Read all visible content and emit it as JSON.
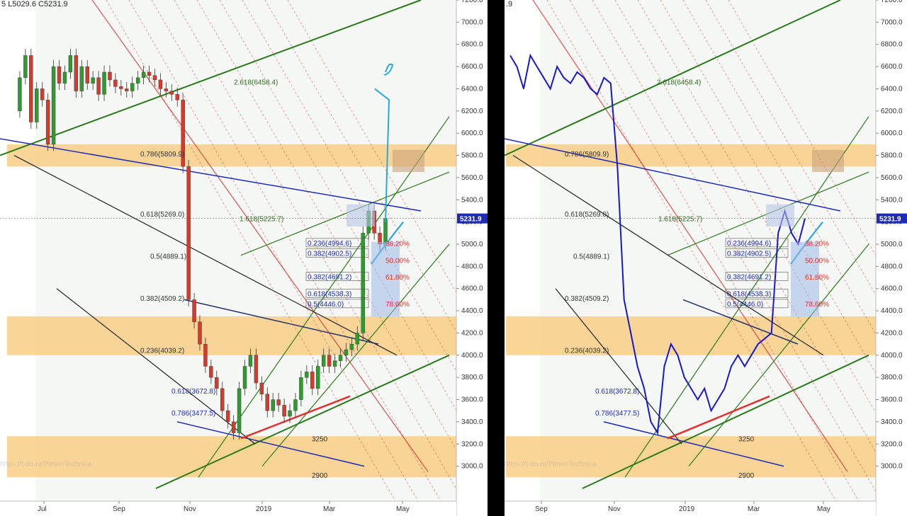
{
  "ohlc_header": {
    "low": "L5029.6",
    "close": "C5231.9",
    "partial": "5",
    "right_partial": ".9"
  },
  "colors": {
    "zone": "#f8c977",
    "zone_edge": "#f5b04d",
    "fib_red": "#e03030",
    "green_line": "#2a7a1a",
    "blue_line": "#1f2bb5",
    "forecast": "#29a8e0",
    "label_blue": "#1f2bb5",
    "label_green": "#2f6b1f",
    "label_red": "#e03030",
    "bg_shade": "#eef4ec",
    "price_tag_bg": "#1f2bb5"
  },
  "watermark": "https://t-do.ru/PimenTechnica",
  "chart_data": [
    {
      "type": "line",
      "name": "left",
      "style": "candles",
      "y_ticks": [
        3000,
        3200,
        3400,
        3600,
        3800,
        4000,
        4200,
        4400,
        4600,
        4800,
        5000,
        5200,
        5400,
        5600,
        5800,
        6000,
        6200,
        6400,
        6600,
        6800,
        7000,
        7200
      ],
      "y_tick_labels": [
        "3000.0",
        "3200.0",
        "3400.0",
        "3600.0",
        "3800.0",
        "4000.0",
        "4200.0",
        "4400.0",
        "4600.0",
        "4800.0",
        "5000.0",
        "5200.0",
        "5400.0",
        "5600.0",
        "5800.0",
        "6000.0",
        "6200.0",
        "6400.0",
        "6600.0",
        "6800.0",
        "7000.0",
        "7200.0"
      ],
      "ylim": [
        2800,
        7200
      ],
      "x_labels": [
        "Jul",
        "Sep",
        "Nov",
        "2019",
        "Mar",
        "May"
      ],
      "last_price": "5231.9",
      "fib_labels": [
        {
          "text": "2.618(6458.4)",
          "y": 6458.4
        },
        {
          "text": "0.786(5809.9)",
          "y": 5809.9
        },
        {
          "text": "0.618(5269.0)",
          "y": 5269.0
        },
        {
          "text": "1.618(5225.7)",
          "y": 5225.7
        },
        {
          "text": "0.5(4889.1)",
          "y": 4889.1
        },
        {
          "text": "0.382(4509.2)",
          "y": 4509.2
        },
        {
          "text": "0.236(4039.2)",
          "y": 4039.2
        },
        {
          "text": "0.618(3672.8)",
          "y": 3672.8
        },
        {
          "text": "0.786(3477.5)",
          "y": 3477.5
        }
      ],
      "inner_labels": [
        {
          "text": "0.236(4994.6)",
          "y": 4994.6
        },
        {
          "text": "0.382(4902.5)",
          "y": 4902.5
        },
        {
          "text": "0.382(4691.2)",
          "y": 4691.2
        },
        {
          "text": "0.618(4538.3)",
          "y": 4538.3
        },
        {
          "text": "0.5(4446.0)",
          "y": 4446.0
        }
      ],
      "pct_labels": [
        "38.20%",
        "50.00%",
        "61.80%",
        "78.60%"
      ],
      "level_labels": [
        "3250",
        "2900"
      ],
      "series_close": [
        6200,
        6500,
        6700,
        6100,
        6400,
        6300,
        5900,
        6600,
        6450,
        6550,
        6700,
        6380,
        6600,
        6450,
        6500,
        6350,
        6550,
        6480,
        6420,
        6400,
        6380,
        6450,
        6500,
        6550,
        6520,
        6480,
        6400,
        6380,
        6350,
        6300,
        5700,
        4500,
        4300,
        4100,
        3900,
        3800,
        3700,
        3500,
        3400,
        3300,
        3700,
        3900,
        4000,
        3750,
        3650,
        3500,
        3600,
        3550,
        3450,
        3500,
        3600,
        3800,
        3850,
        3700,
        3900,
        4000,
        3900,
        3950,
        4000,
        4050,
        4100,
        4200,
        5100,
        5300,
        5100,
        5000,
        5231.9
      ]
    },
    {
      "type": "line",
      "name": "right",
      "style": "line",
      "y_ticks": [
        3000,
        3200,
        3400,
        3600,
        3800,
        4000,
        4200,
        4400,
        4600,
        4800,
        5000,
        5200,
        5400,
        5600,
        5800,
        6000,
        6200,
        6400,
        6600,
        6800,
        7000,
        7200
      ],
      "y_tick_labels": [
        "3000.0",
        "3200.0",
        "3400.0",
        "3600.0",
        "3800.0",
        "4000.0",
        "4200.0",
        "4400.0",
        "4600.0",
        "4800.0",
        "5000.0",
        "5200.0",
        "5400.0",
        "5600.0",
        "5800.0",
        "6000.0",
        "6200.0",
        "6400.0",
        "6600.0",
        "6800.0",
        "7000.0",
        "7200.0"
      ],
      "ylim": [
        2800,
        7200
      ],
      "x_labels": [
        "Sep",
        "Nov",
        "2019",
        "Mar",
        "May"
      ],
      "last_price": "5231.9",
      "fib_labels": [
        {
          "text": "2.618(6458.4)",
          "y": 6458.4
        },
        {
          "text": "0.786(5809.9)",
          "y": 5809.9
        },
        {
          "text": "0.618(5269.0)",
          "y": 5269.0
        },
        {
          "text": "1.618(5225.7)",
          "y": 5225.7
        },
        {
          "text": "0.5(4889.1)",
          "y": 4889.1
        },
        {
          "text": "0.382(4509.2)",
          "y": 4509.2
        },
        {
          "text": "0.236(4039.2)",
          "y": 4039.2
        },
        {
          "text": "0.618(3672.8)",
          "y": 3672.8
        },
        {
          "text": "0.786(3477.5)",
          "y": 3477.5
        }
      ],
      "inner_labels": [
        {
          "text": "0.236(4994.6)",
          "y": 4994.6
        },
        {
          "text": "0.382(4902.5)",
          "y": 4902.5
        },
        {
          "text": "0.382(4691.2)",
          "y": 4691.2
        },
        {
          "text": "0.618(4538.3)",
          "y": 4538.3
        },
        {
          "text": "0.5(4446.0)",
          "y": 4446.0
        }
      ],
      "pct_labels": [
        "38.20%",
        "50.00%",
        "61.80%",
        "78.60%"
      ],
      "level_labels": [
        "3250",
        "2900"
      ],
      "series_close": [
        6700,
        6600,
        6400,
        6700,
        6600,
        6500,
        6400,
        6600,
        6500,
        6450,
        6550,
        6500,
        6400,
        6350,
        6500,
        6450,
        5700,
        4500,
        4200,
        3900,
        3700,
        3400,
        3300,
        3900,
        4100,
        4000,
        3800,
        3700,
        3600,
        3700,
        3500,
        3600,
        3700,
        3900,
        4000,
        3900,
        4000,
        4100,
        4150,
        4200,
        5100,
        5300,
        5100,
        5000,
        5231.9
      ]
    }
  ]
}
